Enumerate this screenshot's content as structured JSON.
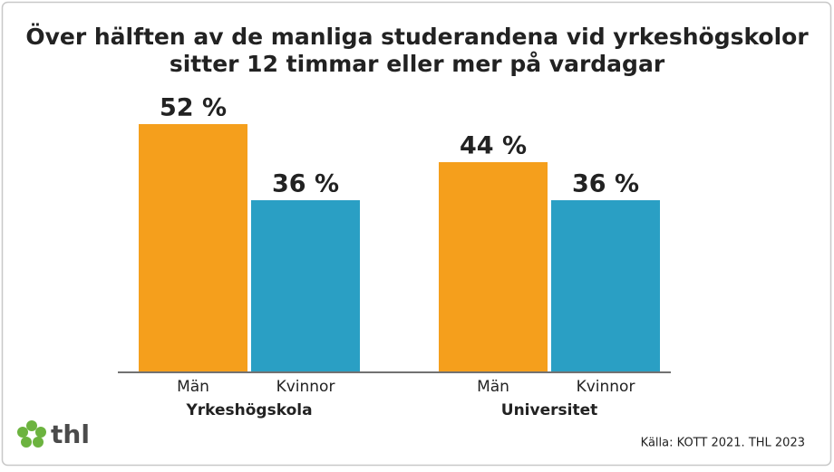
{
  "chart_data": {
    "type": "grouped_bar",
    "title": [
      "Över hälften av de manliga studerandena vid yrkeshögskolor",
      "sitter 12 timmar eller mer på vardagar"
    ],
    "categories": [
      "Män",
      "Kvinnor"
    ],
    "colors": [
      "#f59f1c",
      "#2a9fc4"
    ],
    "groups": [
      {
        "name": "Yrkeshögskola",
        "values": [
          52,
          36
        ],
        "value_labels": [
          "52 %",
          "36 %"
        ]
      },
      {
        "name": "Universitet",
        "values": [
          44,
          36
        ],
        "value_labels": [
          "44 %",
          "36 %"
        ]
      }
    ],
    "source": "Källa: KOTT 2021. THL 2023",
    "logo": "thl"
  }
}
